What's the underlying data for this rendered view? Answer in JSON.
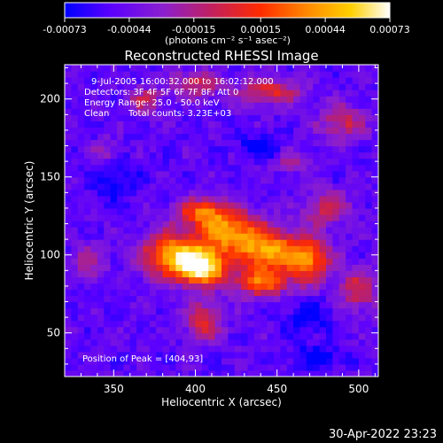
{
  "colorbar": {
    "ticks": [
      "-0.00073",
      "-0.00044",
      "-0.00015",
      "0.00015",
      "0.00044",
      "0.00073"
    ],
    "tick_values": [
      -0.00073,
      -0.00044,
      -0.00015,
      0.00015,
      0.00044,
      0.00073
    ],
    "range": [
      -0.00073,
      0.00073
    ],
    "unit_label": "(photons cm⁻² s⁻¹ asec⁻²)",
    "colormap": [
      "#0000ff",
      "#5a00ff",
      "#8a1fd0",
      "#c02060",
      "#ff2a00",
      "#ff8c00",
      "#ffd000",
      "#ffffff"
    ]
  },
  "chart_data": {
    "type": "heatmap",
    "title": "Reconstructed RHESSI Image",
    "xlabel": "Heliocentric X (arcsec)",
    "ylabel": "Heliocentric Y (arcsec)",
    "xlim": [
      320,
      512
    ],
    "ylim": [
      22,
      222
    ],
    "xticks": [
      350,
      400,
      450,
      500
    ],
    "yticks": [
      50,
      100,
      150,
      200
    ],
    "grid": false,
    "annotations": {
      "time": "9-Jul-2005 16:00:32.000 to 16:02:12.000",
      "detectors": "Detectors: 3F 4F 5F 6F 7F 8F, Att 0",
      "energy": "Energy Range: 25.0 - 50.0 keV",
      "method": "Clean",
      "counts": "Total counts: 3.23E+03",
      "peak": "Position of Peak = [404,93]"
    },
    "peak": [
      404,
      93
    ],
    "sources": [
      {
        "x": 404,
        "y": 93,
        "sx": 10,
        "sy": 8,
        "amp": 1.0
      },
      {
        "x": 385,
        "y": 100,
        "sx": 12,
        "sy": 10,
        "amp": 0.7
      },
      {
        "x": 420,
        "y": 115,
        "sx": 14,
        "sy": 9,
        "amp": 0.65
      },
      {
        "x": 445,
        "y": 102,
        "sx": 14,
        "sy": 10,
        "amp": 0.7
      },
      {
        "x": 470,
        "y": 97,
        "sx": 9,
        "sy": 10,
        "amp": 0.55
      },
      {
        "x": 405,
        "y": 128,
        "sx": 12,
        "sy": 6,
        "amp": 0.5
      },
      {
        "x": 440,
        "y": 82,
        "sx": 12,
        "sy": 6,
        "amp": 0.5
      },
      {
        "x": 480,
        "y": 130,
        "sx": 10,
        "sy": 8,
        "amp": 0.35
      },
      {
        "x": 500,
        "y": 78,
        "sx": 9,
        "sy": 10,
        "amp": 0.35
      },
      {
        "x": 405,
        "y": 58,
        "sx": 8,
        "sy": 9,
        "amp": 0.4
      },
      {
        "x": 445,
        "y": 205,
        "sx": 14,
        "sy": 6,
        "amp": 0.4
      },
      {
        "x": 400,
        "y": 210,
        "sx": 10,
        "sy": 6,
        "amp": 0.35
      },
      {
        "x": 490,
        "y": 185,
        "sx": 10,
        "sy": 8,
        "amp": 0.35
      },
      {
        "x": 370,
        "y": 200,
        "sx": 8,
        "sy": 6,
        "amp": 0.3
      },
      {
        "x": 460,
        "y": 160,
        "sx": 8,
        "sy": 5,
        "amp": 0.25
      },
      {
        "x": 345,
        "y": 165,
        "sx": 6,
        "sy": 6,
        "amp": 0.25
      },
      {
        "x": 335,
        "y": 95,
        "sx": 7,
        "sy": 8,
        "amp": 0.25
      },
      {
        "x": 440,
        "y": 170,
        "sx": 9,
        "sy": 5,
        "amp": -0.25
      },
      {
        "x": 470,
        "y": 60,
        "sx": 10,
        "sy": 8,
        "amp": -0.2
      },
      {
        "x": 350,
        "y": 150,
        "sx": 10,
        "sy": 10,
        "amp": -0.2
      },
      {
        "x": 475,
        "y": 35,
        "sx": 12,
        "sy": 5,
        "amp": -0.2
      }
    ]
  },
  "footer": {
    "timestamp": "30-Apr-2022 23:23"
  }
}
